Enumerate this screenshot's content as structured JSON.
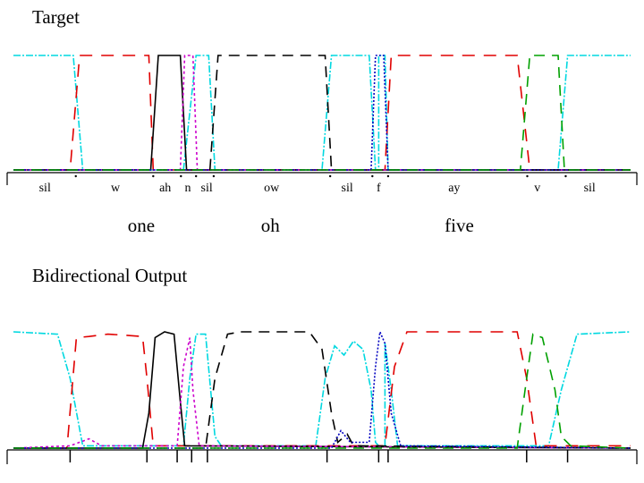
{
  "chart_data": [
    {
      "type": "line",
      "title": "Target",
      "phones": [
        {
          "label": "sil",
          "x": 0.06
        },
        {
          "label": "w",
          "x": 0.172
        },
        {
          "label": "ah",
          "x": 0.251
        },
        {
          "label": "n",
          "x": 0.287
        },
        {
          "label": "sil",
          "x": 0.317
        },
        {
          "label": "ow",
          "x": 0.42
        },
        {
          "label": "sil",
          "x": 0.54
        },
        {
          "label": "f",
          "x": 0.59
        },
        {
          "label": "ay",
          "x": 0.71
        },
        {
          "label": "v",
          "x": 0.842
        },
        {
          "label": "sil",
          "x": 0.925
        }
      ],
      "words": [
        {
          "label": "one",
          "x": 0.213
        },
        {
          "label": "oh",
          "x": 0.418
        },
        {
          "label": "five",
          "x": 0.718
        }
      ],
      "boundaries": [
        0.109,
        0.232,
        0.276,
        0.3,
        0.328,
        0.513,
        0.58,
        0.605,
        0.826,
        0.887
      ],
      "ylim": [
        0,
        1
      ],
      "xlim": [
        0,
        1
      ],
      "series": [
        {
          "color": "#00d8e0",
          "dash": "8 2 2 2",
          "points": [
            [
              0.01,
              1
            ],
            [
              0.105,
              1
            ],
            [
              0.12,
              0
            ],
            [
              0.28,
              0
            ],
            [
              0.3,
              1
            ],
            [
              0.32,
              1
            ],
            [
              0.33,
              0
            ],
            [
              0.5,
              0
            ],
            [
              0.515,
              1
            ],
            [
              0.575,
              1
            ],
            [
              0.585,
              0
            ],
            [
              0.59,
              0
            ],
            [
              0.59,
              1
            ],
            [
              0.6,
              1
            ],
            [
              0.605,
              0
            ],
            [
              0.875,
              0
            ],
            [
              0.89,
              1
            ],
            [
              0.99,
              1
            ]
          ]
        },
        {
          "color": "#e00000",
          "dash": "14 10",
          "points": [
            [
              0.01,
              0
            ],
            [
              0.1,
              0
            ],
            [
              0.115,
              1
            ],
            [
              0.225,
              1
            ],
            [
              0.232,
              0
            ],
            [
              0.6,
              0
            ],
            [
              0.61,
              1
            ],
            [
              0.81,
              1
            ],
            [
              0.83,
              0
            ],
            [
              0.99,
              0
            ]
          ]
        },
        {
          "color": "#000000",
          "dash": "",
          "points": [
            [
              0.01,
              0
            ],
            [
              0.228,
              0
            ],
            [
              0.24,
              1
            ],
            [
              0.275,
              1
            ],
            [
              0.285,
              0
            ],
            [
              0.99,
              0
            ]
          ]
        },
        {
          "color": "#cc00cc",
          "dash": "3 3",
          "points": [
            [
              0.01,
              0
            ],
            [
              0.275,
              0
            ],
            [
              0.282,
              1
            ],
            [
              0.295,
              1
            ],
            [
              0.302,
              0
            ],
            [
              0.99,
              0
            ]
          ]
        },
        {
          "color": "#000000",
          "dash": "12 8",
          "points": [
            [
              0.01,
              0
            ],
            [
              0.322,
              0
            ],
            [
              0.335,
              1
            ],
            [
              0.505,
              1
            ],
            [
              0.515,
              0
            ],
            [
              0.99,
              0
            ]
          ]
        },
        {
          "color": "#0000c0",
          "dash": "2 2",
          "points": [
            [
              0.01,
              0
            ],
            [
              0.578,
              0
            ],
            [
              0.585,
              1
            ],
            [
              0.598,
              1
            ],
            [
              0.605,
              0
            ],
            [
              0.99,
              0
            ]
          ]
        },
        {
          "color": "#00a000",
          "dash": "12 8",
          "points": [
            [
              0.01,
              0
            ],
            [
              0.815,
              0
            ],
            [
              0.83,
              1
            ],
            [
              0.875,
              1
            ],
            [
              0.885,
              0
            ],
            [
              0.99,
              0
            ]
          ]
        }
      ]
    },
    {
      "type": "line",
      "title": "Bidirectional Output",
      "boundaries": [
        0.1,
        0.222,
        0.27,
        0.293,
        0.318,
        0.508,
        0.59,
        0.605,
        0.825,
        0.89
      ],
      "ylim": [
        0,
        1
      ],
      "xlim": [
        0,
        1
      ],
      "series": [
        {
          "color": "#00d8e0",
          "dash": "8 2 2 2",
          "points": [
            [
              0.01,
              1
            ],
            [
              0.08,
              0.98
            ],
            [
              0.1,
              0.6
            ],
            [
              0.12,
              0.02
            ],
            [
              0.28,
              0.02
            ],
            [
              0.29,
              0.6
            ],
            [
              0.3,
              0.98
            ],
            [
              0.315,
              0.98
            ],
            [
              0.33,
              0.1
            ],
            [
              0.34,
              0.02
            ],
            [
              0.49,
              0.02
            ],
            [
              0.505,
              0.6
            ],
            [
              0.52,
              0.88
            ],
            [
              0.535,
              0.8
            ],
            [
              0.55,
              0.92
            ],
            [
              0.565,
              0.85
            ],
            [
              0.578,
              0.5
            ],
            [
              0.585,
              0.05
            ],
            [
              0.59,
              0.02
            ],
            [
              0.6,
              0.02
            ],
            [
              0.6,
              0.9
            ],
            [
              0.61,
              0.5
            ],
            [
              0.62,
              0.02
            ],
            [
              0.86,
              0.02
            ],
            [
              0.88,
              0.5
            ],
            [
              0.905,
              0.98
            ],
            [
              0.99,
              1
            ]
          ]
        },
        {
          "color": "#e00000",
          "dash": "14 10",
          "points": [
            [
              0.01,
              0
            ],
            [
              0.095,
              0
            ],
            [
              0.11,
              0.95
            ],
            [
              0.13,
              0.96
            ],
            [
              0.16,
              0.98
            ],
            [
              0.19,
              0.97
            ],
            [
              0.215,
              0.96
            ],
            [
              0.222,
              0.6
            ],
            [
              0.232,
              0.02
            ],
            [
              0.6,
              0.02
            ],
            [
              0.615,
              0.7
            ],
            [
              0.635,
              1
            ],
            [
              0.81,
              1
            ],
            [
              0.825,
              0.6
            ],
            [
              0.84,
              0.02
            ],
            [
              0.99,
              0.02
            ]
          ]
        },
        {
          "color": "#000000",
          "dash": "",
          "points": [
            [
              0.01,
              0
            ],
            [
              0.215,
              0
            ],
            [
              0.225,
              0.3
            ],
            [
              0.235,
              0.95
            ],
            [
              0.25,
              1
            ],
            [
              0.265,
              0.98
            ],
            [
              0.275,
              0.4
            ],
            [
              0.282,
              0.02
            ],
            [
              0.99,
              0
            ]
          ]
        },
        {
          "color": "#cc00cc",
          "dash": "3 3",
          "points": [
            [
              0.01,
              0
            ],
            [
              0.1,
              0.02
            ],
            [
              0.13,
              0.08
            ],
            [
              0.15,
              0.02
            ],
            [
              0.27,
              0.02
            ],
            [
              0.28,
              0.7
            ],
            [
              0.29,
              0.95
            ],
            [
              0.295,
              0.5
            ],
            [
              0.305,
              0.02
            ],
            [
              0.99,
              0
            ]
          ]
        },
        {
          "color": "#000000",
          "dash": "12 8",
          "points": [
            [
              0.01,
              0
            ],
            [
              0.315,
              0
            ],
            [
              0.33,
              0.6
            ],
            [
              0.35,
              0.98
            ],
            [
              0.37,
              1
            ],
            [
              0.48,
              1
            ],
            [
              0.5,
              0.85
            ],
            [
              0.515,
              0.3
            ],
            [
              0.525,
              0.05
            ],
            [
              0.54,
              0.12
            ],
            [
              0.55,
              0.02
            ],
            [
              0.99,
              0
            ]
          ]
        },
        {
          "color": "#0000c0",
          "dash": "2 2",
          "points": [
            [
              0.01,
              0
            ],
            [
              0.515,
              0
            ],
            [
              0.53,
              0.15
            ],
            [
              0.545,
              0.05
            ],
            [
              0.575,
              0.05
            ],
            [
              0.585,
              0.7
            ],
            [
              0.592,
              1
            ],
            [
              0.6,
              0.9
            ],
            [
              0.61,
              0.3
            ],
            [
              0.625,
              0.02
            ],
            [
              0.99,
              0
            ]
          ]
        },
        {
          "color": "#00a000",
          "dash": "12 8",
          "points": [
            [
              0.01,
              0
            ],
            [
              0.81,
              0
            ],
            [
              0.825,
              0.6
            ],
            [
              0.835,
              0.98
            ],
            [
              0.85,
              0.95
            ],
            [
              0.87,
              0.5
            ],
            [
              0.88,
              0.1
            ],
            [
              0.895,
              0.02
            ],
            [
              0.99,
              0
            ]
          ]
        }
      ]
    }
  ]
}
